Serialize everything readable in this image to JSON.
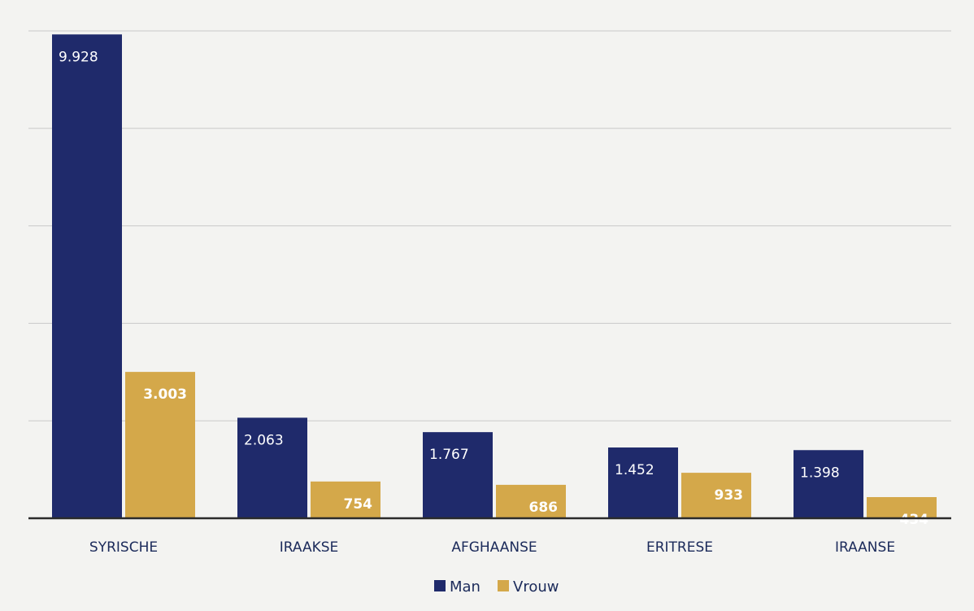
{
  "chart_data": {
    "type": "bar",
    "categories": [
      "SYRISCHE",
      "IRAAKSE",
      "AFGHAANSE",
      "ERITRESE",
      "IRAANSE"
    ],
    "series": [
      {
        "name": "Man",
        "color": "#1f2a6b",
        "values": [
          9928,
          2063,
          1767,
          1452,
          1398
        ],
        "labels": [
          "9.928",
          "2.063",
          "1.767",
          "1.452",
          "1.398"
        ]
      },
      {
        "name": "Vrouw",
        "color": "#d4a84a",
        "values": [
          3003,
          754,
          686,
          933,
          434
        ],
        "labels": [
          "3.003",
          "754",
          "686",
          "933",
          "434"
        ]
      }
    ],
    "ylim": [
      0,
      10000
    ],
    "grid": true,
    "legend": "bottom-center"
  }
}
